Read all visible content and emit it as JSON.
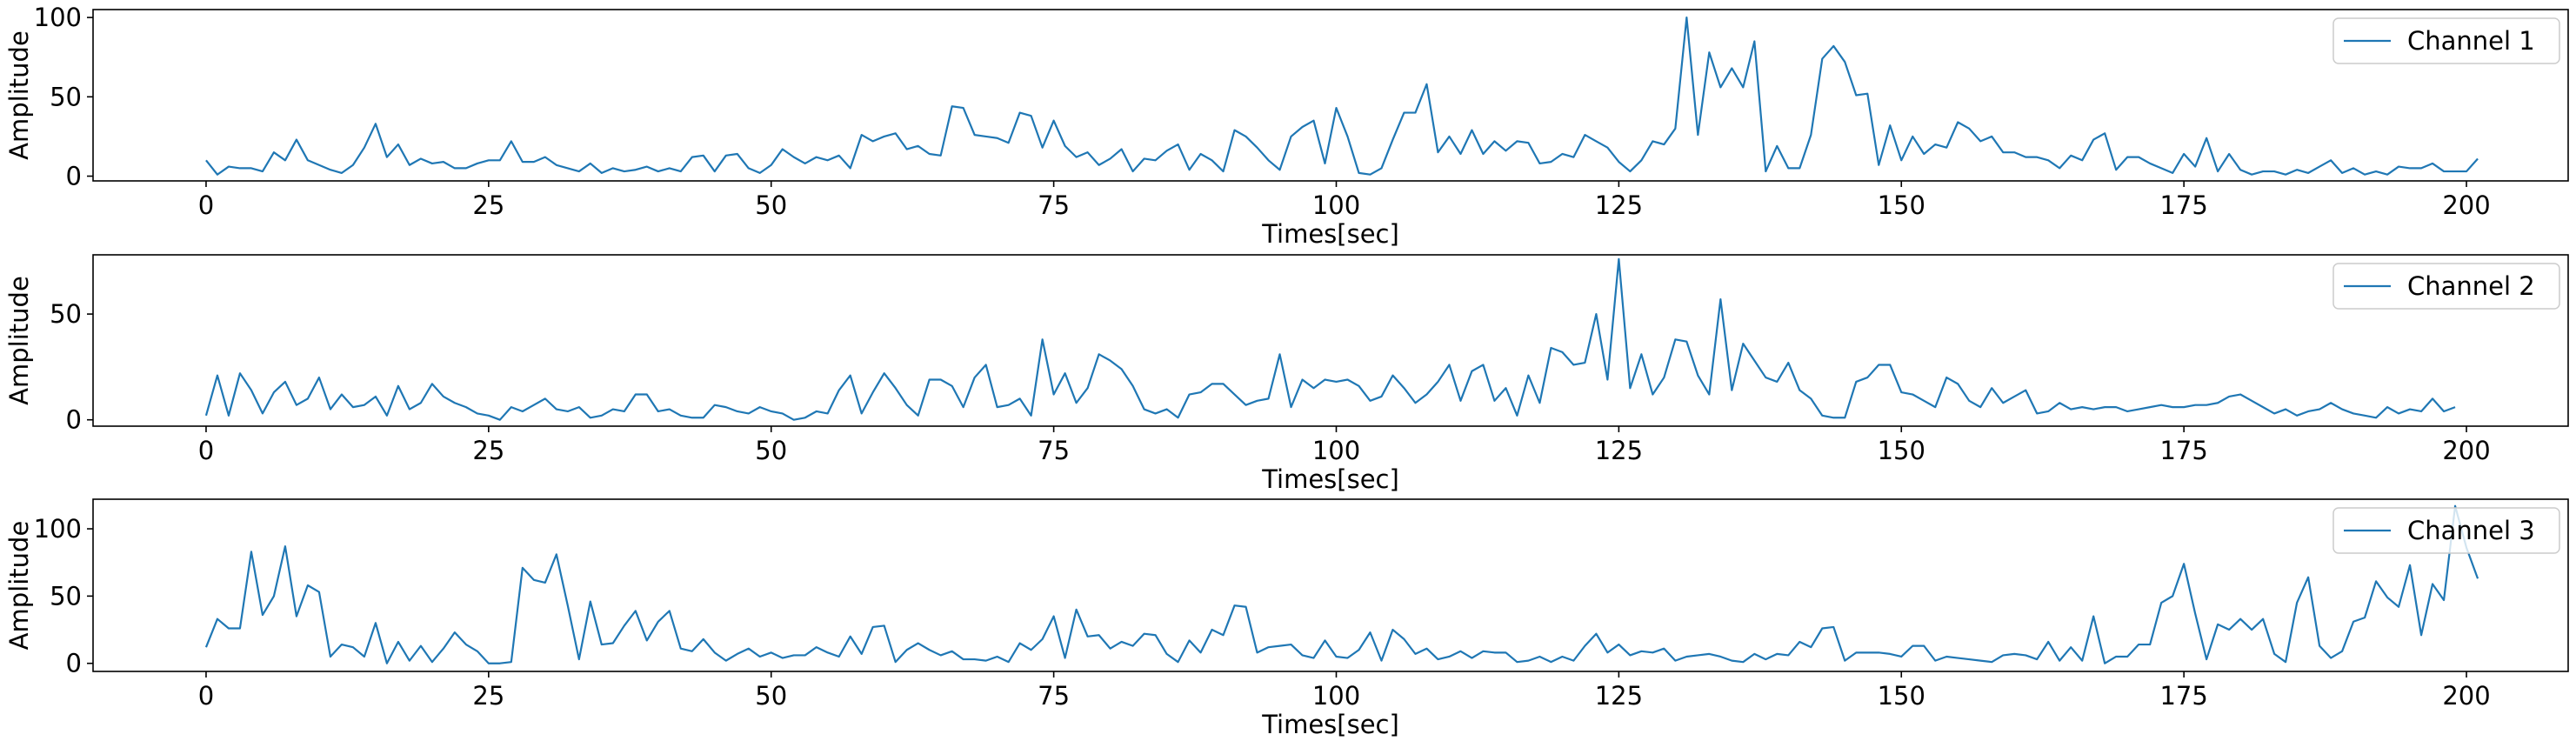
{
  "figure": {
    "line_color": "#1f77b4",
    "background": "#ffffff"
  },
  "chart_data": [
    {
      "type": "line",
      "xlabel": "Times[sec]",
      "ylabel": "Amplitude",
      "xlim": [
        -10,
        209
      ],
      "ylim": [
        -3,
        105
      ],
      "xticks": [
        0,
        25,
        50,
        75,
        100,
        125,
        150,
        175,
        200
      ],
      "yticks": [
        0,
        50,
        100
      ],
      "legend_position": "upper right",
      "series": [
        {
          "name": "Channel 1",
          "color": "#1f77b4",
          "x_start": 0,
          "x_step": 1,
          "values": [
            10,
            1,
            6,
            5,
            5,
            3,
            15,
            10,
            23,
            10,
            7,
            4,
            2,
            7,
            18,
            33,
            12,
            20,
            7,
            11,
            8,
            9,
            5,
            5,
            8,
            10,
            10,
            22,
            9,
            9,
            12,
            7,
            5,
            3,
            8,
            2,
            5,
            3,
            4,
            6,
            3,
            5,
            3,
            12,
            13,
            3,
            13,
            14,
            5,
            2,
            7,
            17,
            12,
            8,
            12,
            10,
            13,
            5,
            26,
            22,
            25,
            27,
            17,
            19,
            14,
            13,
            44,
            43,
            26,
            25,
            24,
            21,
            40,
            38,
            18,
            35,
            19,
            12,
            15,
            7,
            11,
            17,
            3,
            11,
            10,
            16,
            20,
            4,
            14,
            10,
            3,
            29,
            25,
            18,
            10,
            4,
            25,
            31,
            35,
            8,
            43,
            25,
            2,
            1,
            5,
            23,
            40,
            40,
            58,
            15,
            25,
            14,
            29,
            14,
            22,
            16,
            22,
            21,
            8,
            9,
            14,
            12,
            26,
            22,
            18,
            9,
            3,
            10,
            22,
            20,
            30,
            100,
            26,
            78,
            56,
            68,
            56,
            85,
            3,
            19,
            5,
            5,
            26,
            74,
            82,
            72,
            51,
            52,
            7,
            32,
            10,
            25,
            14,
            20,
            18,
            34,
            30,
            22,
            25,
            15,
            15,
            12,
            12,
            10,
            5,
            13,
            10,
            23,
            27,
            4,
            12,
            12,
            8,
            5,
            2,
            14,
            6,
            24,
            3,
            14,
            4,
            1,
            3,
            3,
            1,
            4,
            2,
            6,
            10,
            2,
            5,
            1,
            3,
            1,
            6,
            5,
            5,
            8,
            3,
            3,
            3,
            11
          ]
        }
      ]
    },
    {
      "type": "line",
      "xlabel": "Times[sec]",
      "ylabel": "Amplitude",
      "xlim": [
        -10,
        209
      ],
      "ylim": [
        -3,
        78
      ],
      "xticks": [
        0,
        25,
        50,
        75,
        100,
        125,
        150,
        175,
        200
      ],
      "yticks": [
        0,
        50
      ],
      "legend_position": "upper right",
      "series": [
        {
          "name": "Channel 2",
          "color": "#1f77b4",
          "x_start": 0,
          "x_step": 1,
          "values": [
            2,
            21,
            2,
            22,
            14,
            3,
            13,
            18,
            7,
            10,
            20,
            5,
            12,
            6,
            7,
            11,
            2,
            16,
            5,
            8,
            17,
            11,
            8,
            6,
            3,
            2,
            0,
            6,
            4,
            7,
            10,
            5,
            4,
            6,
            1,
            2,
            5,
            4,
            12,
            12,
            4,
            5,
            2,
            1,
            1,
            7,
            6,
            4,
            3,
            6,
            4,
            3,
            0,
            1,
            4,
            3,
            14,
            21,
            3,
            13,
            22,
            15,
            7,
            2,
            19,
            19,
            16,
            6,
            20,
            26,
            6,
            7,
            10,
            2,
            38,
            12,
            22,
            8,
            15,
            31,
            28,
            24,
            16,
            5,
            3,
            5,
            1,
            12,
            13,
            17,
            17,
            12,
            7,
            9,
            10,
            31,
            6,
            19,
            15,
            19,
            18,
            19,
            16,
            9,
            11,
            21,
            15,
            8,
            12,
            18,
            26,
            9,
            23,
            26,
            9,
            15,
            2,
            21,
            8,
            34,
            32,
            26,
            27,
            50,
            19,
            76,
            15,
            31,
            12,
            20,
            38,
            37,
            21,
            12,
            57,
            14,
            36,
            28,
            20,
            18,
            27,
            14,
            10,
            2,
            1,
            1,
            18,
            20,
            26,
            26,
            13,
            12,
            9,
            6,
            20,
            17,
            9,
            6,
            15,
            8,
            11,
            14,
            3,
            4,
            8,
            5,
            6,
            5,
            6,
            6,
            4,
            5,
            6,
            7,
            6,
            6,
            7,
            7,
            8,
            11,
            12,
            9,
            6,
            3,
            5,
            2,
            4,
            5,
            8,
            5,
            3,
            2,
            1,
            6,
            3,
            5,
            4,
            10,
            4,
            6
          ]
        }
      ]
    },
    {
      "type": "line",
      "xlabel": "Times[sec]",
      "ylabel": "Amplitude",
      "xlim": [
        -10,
        209
      ],
      "ylim": [
        -6,
        122
      ],
      "xticks": [
        0,
        25,
        50,
        75,
        100,
        125,
        150,
        175,
        200
      ],
      "yticks": [
        0,
        50,
        100
      ],
      "legend_position": "upper right",
      "series": [
        {
          "name": "Channel 3",
          "color": "#1f77b4",
          "x_start": 0,
          "x_step": 1,
          "values": [
            12,
            33,
            26,
            26,
            83,
            36,
            50,
            87,
            35,
            58,
            53,
            5,
            14,
            12,
            5,
            30,
            0,
            16,
            2,
            13,
            1,
            11,
            23,
            14,
            9,
            0,
            0,
            1,
            71,
            62,
            60,
            81,
            43,
            3,
            46,
            14,
            15,
            28,
            39,
            17,
            31,
            39,
            11,
            9,
            18,
            8,
            2,
            7,
            11,
            5,
            8,
            4,
            6,
            6,
            12,
            8,
            5,
            20,
            7,
            27,
            28,
            1,
            10,
            15,
            10,
            6,
            9,
            3,
            3,
            2,
            5,
            1,
            15,
            10,
            18,
            35,
            4,
            40,
            20,
            21,
            11,
            16,
            13,
            22,
            21,
            7,
            1,
            17,
            8,
            25,
            21,
            43,
            42,
            8,
            12,
            13,
            14,
            6,
            4,
            17,
            5,
            4,
            10,
            23,
            2,
            25,
            18,
            7,
            11,
            3,
            5,
            9,
            4,
            9,
            8,
            8,
            1,
            2,
            5,
            1,
            5,
            2,
            13,
            22,
            8,
            14,
            6,
            9,
            8,
            11,
            2,
            5,
            6,
            7,
            5,
            2,
            1,
            7,
            3,
            7,
            6,
            16,
            12,
            26,
            27,
            2,
            8,
            8,
            8,
            7,
            5,
            13,
            13,
            2,
            5,
            4,
            3,
            2,
            1,
            6,
            7,
            6,
            3,
            16,
            2,
            12,
            2,
            35,
            0,
            5,
            5,
            14,
            14,
            45,
            50,
            74,
            37,
            3,
            29,
            25,
            33,
            25,
            33,
            7,
            1,
            45,
            64,
            13,
            4,
            9,
            31,
            34,
            61,
            49,
            42,
            73,
            21,
            59,
            47,
            117,
            86,
            63
          ]
        }
      ]
    }
  ]
}
